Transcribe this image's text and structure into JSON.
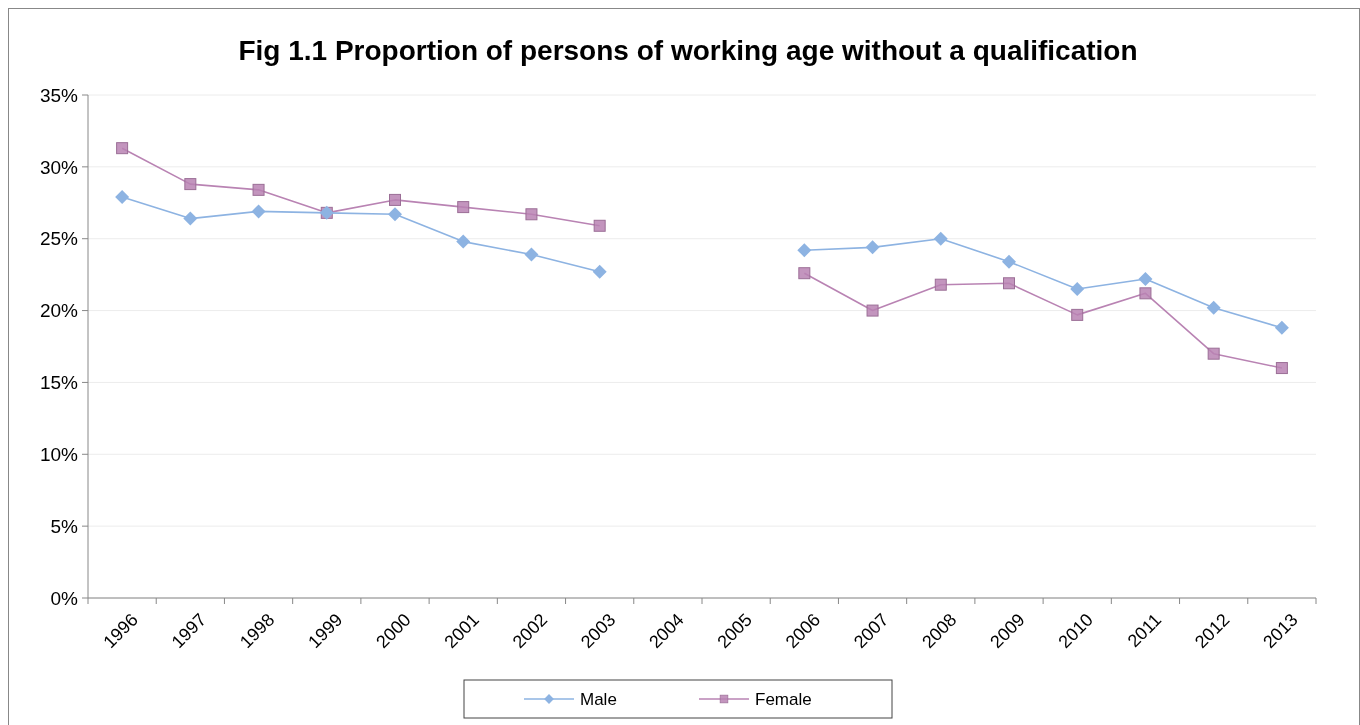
{
  "chart_data": {
    "type": "line",
    "title": "Fig 1.1 Proportion of persons of working age without a qualification",
    "categories": [
      "1996",
      "1997",
      "1998",
      "1999",
      "2000",
      "2001",
      "2002",
      "2003",
      "2004",
      "2005",
      "2006",
      "2007",
      "2008",
      "2009",
      "2010",
      "2011",
      "2012",
      "2013"
    ],
    "series": [
      {
        "name": "Male",
        "color": "#8db3e2",
        "marker": "diamond",
        "values": [
          27.9,
          26.4,
          26.9,
          26.8,
          26.7,
          24.8,
          23.9,
          22.7,
          null,
          null,
          24.2,
          24.4,
          25.0,
          23.4,
          21.5,
          22.2,
          20.2,
          18.8
        ]
      },
      {
        "name": "Female",
        "color": "#b983b3",
        "marker": "square",
        "values": [
          31.3,
          28.8,
          28.4,
          26.8,
          27.7,
          27.2,
          26.7,
          25.9,
          null,
          null,
          22.6,
          20.0,
          21.8,
          21.9,
          19.7,
          21.2,
          17.0,
          16.0
        ]
      }
    ],
    "ylim": [
      0,
      35
    ],
    "yticks": [
      {
        "value": 0,
        "label": "0%"
      },
      {
        "value": 5,
        "label": "5%"
      },
      {
        "value": 10,
        "label": "10%"
      },
      {
        "value": 15,
        "label": "15%"
      },
      {
        "value": 20,
        "label": "20%"
      },
      {
        "value": 25,
        "label": "25%"
      },
      {
        "value": 30,
        "label": "30%"
      },
      {
        "value": 35,
        "label": "35%"
      }
    ],
    "grid": "y",
    "legend": "bottom"
  }
}
